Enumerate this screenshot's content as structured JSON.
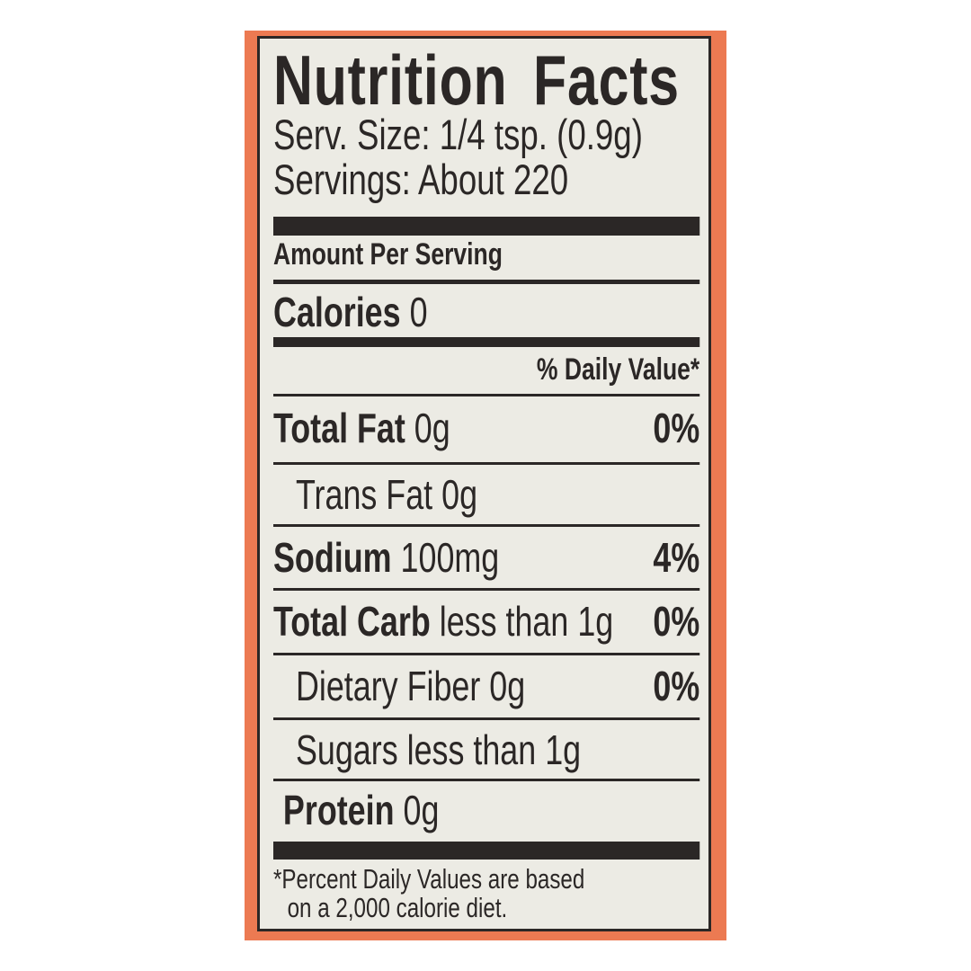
{
  "title": "Nutrition Facts",
  "serving_size": "Serv. Size: 1/4 tsp. (0.9g)",
  "servings": "Servings: About 220",
  "amount_per_serving": "Amount Per Serving",
  "calories": {
    "label": "Calories",
    "value": "0"
  },
  "daily_value_header": "% Daily Value*",
  "nutrients": [
    {
      "label": "Total Fat",
      "amount": "0g",
      "dv": "0%"
    },
    {
      "label": "Trans Fat",
      "amount": "0g",
      "dv": ""
    },
    {
      "label": "Sodium",
      "amount": "100mg",
      "dv": "4%"
    },
    {
      "label": "Total Carb",
      "amount": "less than 1g",
      "dv": "0%"
    },
    {
      "label": "Dietary Fiber",
      "amount": "0g",
      "dv": "0%"
    },
    {
      "label": "Sugars",
      "amount": "less than 1g",
      "dv": ""
    },
    {
      "label": "Protein",
      "amount": "0g",
      "dv": ""
    }
  ],
  "footnote": {
    "line1": "*Percent  Daily Values are based",
    "line2": "on a 2,000 calorie diet."
  },
  "colors": {
    "panel": "#ec7a52",
    "label_bg": "#ecebe4",
    "ink": "#2b2726"
  }
}
